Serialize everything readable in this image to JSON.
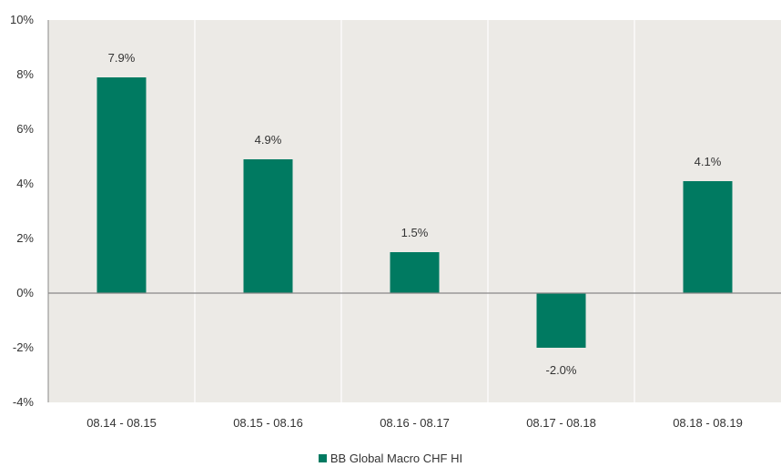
{
  "chart_data": {
    "type": "bar",
    "categories": [
      "08.14 - 08.15",
      "08.15 - 08.16",
      "08.16 - 08.17",
      "08.17 - 08.18",
      "08.18 - 08.19"
    ],
    "series": [
      {
        "name": "BB Global Macro CHF HI",
        "values": [
          7.9,
          4.9,
          1.5,
          -2.0,
          4.1
        ],
        "labels": [
          "7.9%",
          "4.9%",
          "1.5%",
          "-2.0%",
          "4.1%"
        ]
      }
    ],
    "ylim": [
      -4,
      10
    ],
    "yticks": [
      10,
      8,
      6,
      4,
      2,
      0,
      -2,
      -4
    ],
    "ytick_labels": [
      "10%",
      "8%",
      "6%",
      "4%",
      "2%",
      "0%",
      "-2%",
      "-4%"
    ],
    "title": "",
    "xlabel": "",
    "ylabel": "",
    "legend_position": "bottom-center",
    "grid": "vertical",
    "colors": {
      "bar": "#007A61",
      "plot_bg": "#ECEAE6",
      "gridline": "#FFFFFF",
      "axis": "#888888"
    }
  }
}
